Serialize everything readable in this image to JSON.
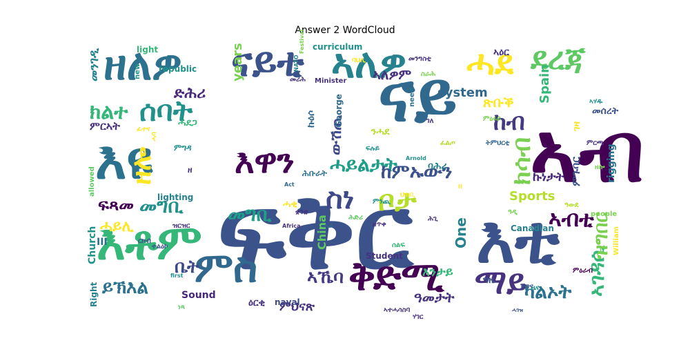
{
  "title": "Answer 2 WordCloud",
  "palette": "viridis",
  "words": [
    {
      "text": "ፍቅር",
      "color": "#3b528b"
    },
    {
      "text": "ናይ",
      "color": "#31688e"
    },
    {
      "text": "ኣብ",
      "color": "#440154"
    },
    {
      "text": "እቲ",
      "color": "#3b528b"
    },
    {
      "text": "ዘለዎ",
      "color": "#2c728e"
    },
    {
      "text": "ናይቲ",
      "color": "#3b528b"
    },
    {
      "text": "ኣለዎ",
      "color": "#26828e"
    },
    {
      "text": "ሓደ",
      "color": "#fde725"
    },
    {
      "text": "ደረጃ",
      "color": "#5ec962"
    },
    {
      "text": "እዩ",
      "color": "#2c728e"
    },
    {
      "text": "እቶም",
      "color": "#35b779"
    },
    {
      "text": "ምስ",
      "color": "#31688e"
    },
    {
      "text": "ቅድሚ",
      "color": "#440154"
    },
    {
      "text": "ማይ",
      "color": "#46327e"
    },
    {
      "text": "ክልተ",
      "color": "#35b779"
    },
    {
      "text": "ሰባት",
      "color": "#21918c"
    },
    {
      "text": "እዋን",
      "color": "#440154"
    },
    {
      "text": "ከብ",
      "color": "#443983"
    },
    {
      "text": "ክሳብ",
      "color": "#7ad151"
    },
    {
      "text": "ቦታ",
      "color": "#b5de2b"
    },
    {
      "text": "ስነ",
      "color": "#3e4989"
    },
    {
      "text": "ኣብቲ",
      "color": "#440154"
    },
    {
      "text": "መግቢ",
      "color": "#21918c"
    },
    {
      "text": "ሓይልታት",
      "color": "#1f9e89"
    },
    {
      "text": "ከምኡውን",
      "color": "#3b528b"
    },
    {
      "text": "ይኽእል",
      "color": "#2c728e"
    },
    {
      "text": "ዘሎ",
      "color": "#fde725"
    },
    {
      "text": "ኣኼባ",
      "color": "#443983"
    },
    {
      "text": "ቤት",
      "color": "#3e4989"
    },
    {
      "text": "ሓይሊ",
      "color": "#fde725"
    },
    {
      "text": "ኣለዎም",
      "color": "#46327e"
    },
    {
      "text": "ድሕሪ",
      "color": "#482878"
    },
    {
      "text": "ምርኣት",
      "color": "#46327e"
    },
    {
      "text": "መንገዲ",
      "color": "#26828e"
    },
    {
      "text": "ሓቂ",
      "color": "#fde725"
    },
    {
      "text": "ንሓደ",
      "color": "#b5de2b"
    },
    {
      "text": "ካልኦት",
      "color": "#2c728e"
    },
    {
      "text": "ውሽጢ",
      "color": "#3e4989"
    },
    {
      "text": "ኩነታት",
      "color": "#482878"
    },
    {
      "text": "መግቢ",
      "color": "#1f9e89"
    },
    {
      "text": "ኣገዳሲ",
      "color": "#35b779"
    },
    {
      "text": "ዓመታት",
      "color": "#46327e"
    },
    {
      "text": "ጽቡቕ",
      "color": "#fde725"
    },
    {
      "text": "ምህናጽ",
      "color": "#46327e"
    },
    {
      "text": "ምጉባር",
      "color": "#3b528b"
    },
    {
      "text": "ዝግበር",
      "color": "#7ad151"
    },
    {
      "text": "መሰረት",
      "color": "#3b528b"
    },
    {
      "text": "ገዛ",
      "color": "#fde725"
    },
    {
      "text": "ግዜ",
      "color": "#3b528b"
    },
    {
      "text": "እንታይ",
      "color": "#35b779"
    },
    {
      "text": "ባሕሪ",
      "color": "#26828e"
    },
    {
      "text": "ሕቡራት",
      "color": "#2c728e"
    },
    {
      "text": "ኩዕሶ",
      "color": "#31688e"
    },
    {
      "text": "ሓደጋ",
      "color": "#35b779"
    },
    {
      "text": "ፍጻመ",
      "color": "#440154"
    },
    {
      "text": "One",
      "color": "#26828e"
    },
    {
      "text": "system",
      "color": "#31688e"
    },
    {
      "text": "Sports",
      "color": "#b5de2b"
    },
    {
      "text": "years",
      "color": "#7ad151"
    },
    {
      "text": "Spain",
      "color": "#35b779"
    },
    {
      "text": "China",
      "color": "#5ec962"
    },
    {
      "text": "rigging",
      "color": "#2c728e"
    },
    {
      "text": "George",
      "color": "#31688e"
    },
    {
      "text": "Church",
      "color": "#21918c"
    },
    {
      "text": "Sound",
      "color": "#482878"
    },
    {
      "text": "naval",
      "color": "#3e4989"
    },
    {
      "text": "Canadian",
      "color": "#26828e"
    },
    {
      "text": "Student",
      "color": "#46327e"
    },
    {
      "text": "light",
      "color": "#35b779"
    },
    {
      "text": "new",
      "color": "#21918c"
    },
    {
      "text": "curriculum",
      "color": "#21918c"
    },
    {
      "text": "Right",
      "color": "#26828e"
    },
    {
      "text": "William",
      "color": "#fde725"
    },
    {
      "text": "allowed",
      "color": "#5ec962"
    },
    {
      "text": "lighting",
      "color": "#26828e"
    },
    {
      "text": "need",
      "color": "#2c728e"
    },
    {
      "text": "Minister",
      "color": "#46327e"
    },
    {
      "text": "Act",
      "color": "#31688e"
    },
    {
      "text": "Africa",
      "color": "#46327e"
    },
    {
      "text": "people",
      "color": "#7ad151"
    },
    {
      "text": "NATO",
      "color": "#26828e"
    },
    {
      "text": "Festival",
      "color": "#7ad151"
    },
    {
      "text": "Arnold",
      "color": "#21918c"
    },
    {
      "text": "first",
      "color": "#21918c"
    },
    {
      "text": "republic",
      "color": "#21918c"
    },
    {
      "text": "II",
      "color": "#fde725"
    },
    {
      "text": "III",
      "color": "#2c728e"
    },
    {
      "text": "ዘ",
      "color": "#46327e"
    },
    {
      "text": "ሓባ",
      "color": "#fde725"
    },
    {
      "text": "ምግዳ",
      "color": "#21918c"
    },
    {
      "text": "ዘጥቀ",
      "color": "#46327e"
    },
    {
      "text": "ሰልፍ",
      "color": "#35b779"
    },
    {
      "text": "ህዝቢ",
      "color": "#fde725"
    },
    {
      "text": "ኣዕር",
      "color": "#46327e"
    },
    {
      "text": "ጅግና",
      "color": "#3b528b"
    },
    {
      "text": "ምዕሩይ",
      "color": "#7ad151"
    },
    {
      "text": "ዕርቂ",
      "color": "#46327e"
    },
    {
      "text": "ተልዕኮ",
      "color": "#3b528b"
    },
    {
      "text": "መንግስቲ",
      "color": "#46327e"
    },
    {
      "text": "ፈልጦ",
      "color": "#b5de2b"
    },
    {
      "text": "ሕድሪ",
      "color": "#5ec962"
    },
    {
      "text": "ምዕራብ",
      "color": "#440154"
    },
    {
      "text": "ትምህርቲ",
      "color": "#31688e"
    },
    {
      "text": "ፍሉይ",
      "color": "#21918c"
    },
    {
      "text": "ቋንቋ",
      "color": "#46327e"
    },
    {
      "text": "ዓዲ",
      "color": "#7ad151"
    },
    {
      "text": "ኣሃዱ",
      "color": "#21918c"
    },
    {
      "text": "ሕጊ",
      "color": "#46327e"
    },
    {
      "text": "ነጻ",
      "color": "#5ec962"
    },
    {
      "text": "ሓራ",
      "color": "#31688e"
    },
    {
      "text": "ባህሊ",
      "color": "#fde725"
    },
    {
      "text": "ምርጫ",
      "color": "#46327e"
    },
    {
      "text": "ስራሕ",
      "color": "#7ad151"
    },
    {
      "text": "ዜና",
      "color": "#21918c"
    },
    {
      "text": "ሃገር",
      "color": "#46327e"
    },
    {
      "text": "ፈተና",
      "color": "#fde725"
    },
    {
      "text": "ዝርዝር",
      "color": "#46327e"
    },
    {
      "text": "ዓውደ",
      "color": "#b5de2b"
    },
    {
      "text": "ምንጪ",
      "color": "#21918c"
    },
    {
      "text": "ርክብ",
      "color": "#3b528b"
    },
    {
      "text": "ገለ",
      "color": "#46327e"
    },
    {
      "text": "ዘሎ",
      "color": "#7ad151"
    },
    {
      "text": "መሪሕ",
      "color": "#46327e"
    },
    {
      "text": "ሓገዝ",
      "color": "#3b528b"
    },
    {
      "text": "ኣተሓሳስባ",
      "color": "#46327e"
    },
    {
      "text": "ምኽሪ",
      "color": "#3b528b"
    }
  ]
}
